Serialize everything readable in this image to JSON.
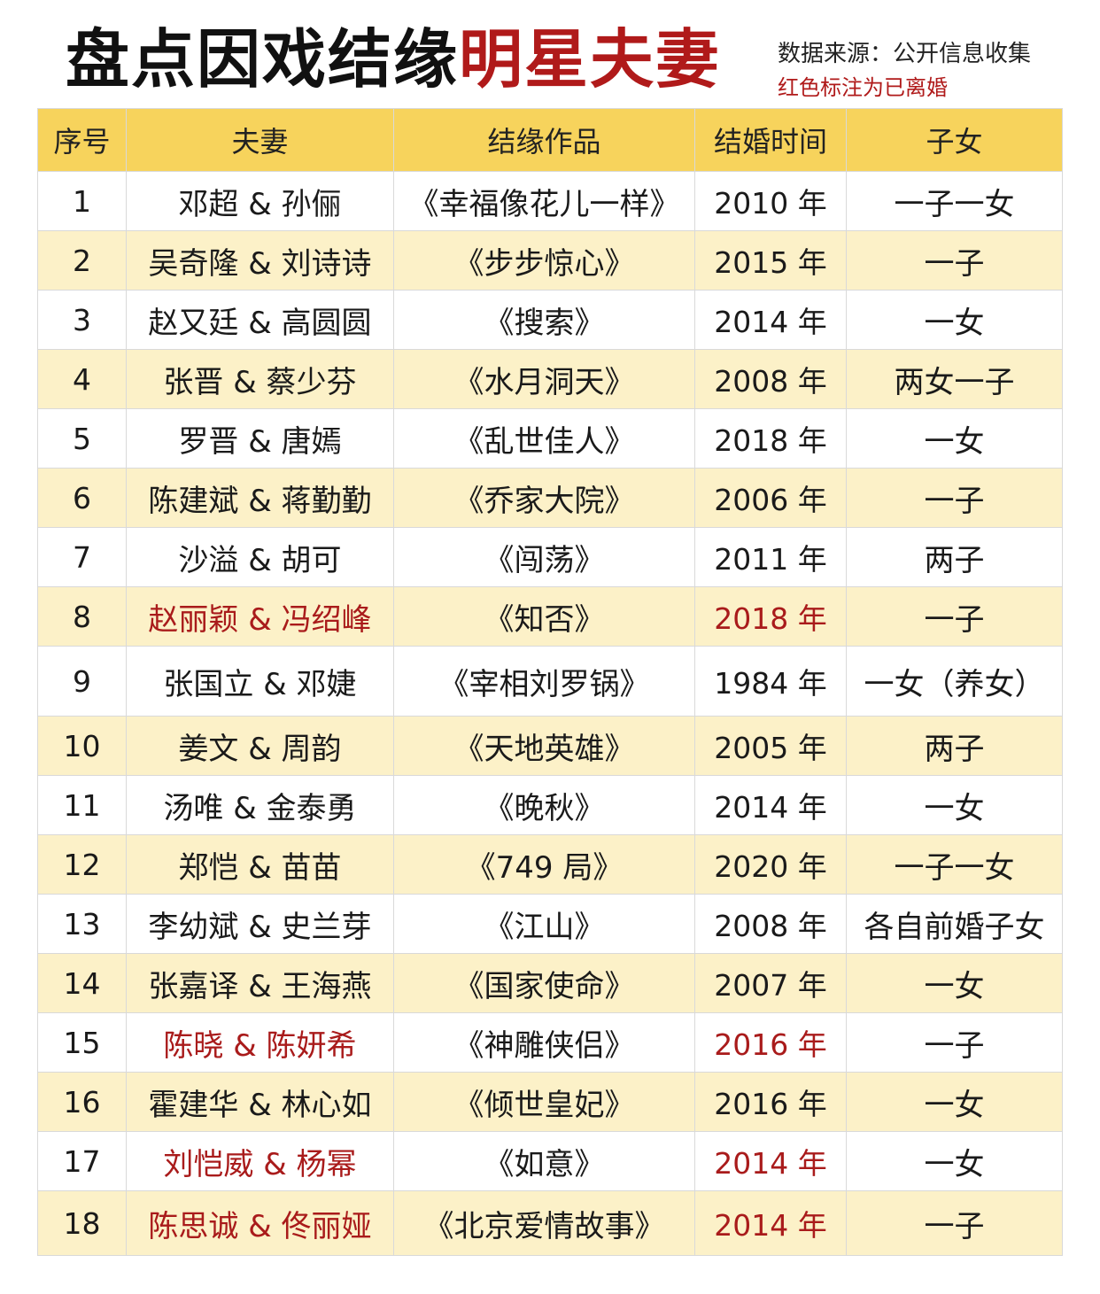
{
  "header": {
    "title_black": "盘点因戏结缘",
    "title_red": "明星夫妻",
    "source": "数据来源：公开信息收集",
    "note": "红色标注为已离婚"
  },
  "colors": {
    "header_row": "#f7d35c",
    "alt_row": "#fcf1c8",
    "divorced_text": "#a91b1b"
  },
  "table": {
    "columns": [
      "序号",
      "夫妻",
      "结缘作品",
      "结婚时间",
      "子女"
    ],
    "rows": [
      {
        "no": "1",
        "couple": "邓超 & 孙俪",
        "work": "《幸福像花儿一样》",
        "year": "2010 年",
        "children": "一子一女",
        "divorced": false
      },
      {
        "no": "2",
        "couple": "吴奇隆 & 刘诗诗",
        "work": "《步步惊心》",
        "year": "2015 年",
        "children": "一子",
        "divorced": false
      },
      {
        "no": "3",
        "couple": "赵又廷 & 高圆圆",
        "work": "《搜索》",
        "year": "2014 年",
        "children": "一女",
        "divorced": false
      },
      {
        "no": "4",
        "couple": "张晋 & 蔡少芬",
        "work": "《水月洞天》",
        "year": "2008 年",
        "children": "两女一子",
        "divorced": false
      },
      {
        "no": "5",
        "couple": "罗晋 & 唐嫣",
        "work": "《乱世佳人》",
        "year": "2018 年",
        "children": "一女",
        "divorced": false
      },
      {
        "no": "6",
        "couple": "陈建斌 & 蒋勤勤",
        "work": "《乔家大院》",
        "year": "2006 年",
        "children": "一子",
        "divorced": false
      },
      {
        "no": "7",
        "couple": "沙溢 & 胡可",
        "work": "《闯荡》",
        "year": "2011 年",
        "children": "两子",
        "divorced": false
      },
      {
        "no": "8",
        "couple": "赵丽颖 & 冯绍峰",
        "work": "《知否》",
        "year": "2018 年",
        "children": "一子",
        "divorced": true
      },
      {
        "no": "9",
        "couple": "张国立 & 邓婕",
        "work": "《宰相刘罗锅》",
        "year": "1984 年",
        "children": "一女（养女）",
        "divorced": false
      },
      {
        "no": "10",
        "couple": "姜文 & 周韵",
        "work": "《天地英雄》",
        "year": "2005 年",
        "children": "两子",
        "divorced": false
      },
      {
        "no": "11",
        "couple": "汤唯 & 金泰勇",
        "work": "《晚秋》",
        "year": "2014 年",
        "children": "一女",
        "divorced": false
      },
      {
        "no": "12",
        "couple": "郑恺 & 苗苗",
        "work": "《749 局》",
        "year": "2020 年",
        "children": "一子一女",
        "divorced": false
      },
      {
        "no": "13",
        "couple": "李幼斌 & 史兰芽",
        "work": "《江山》",
        "year": "2008 年",
        "children": "各自前婚子女",
        "divorced": false
      },
      {
        "no": "14",
        "couple": "张嘉译 & 王海燕",
        "work": "《国家使命》",
        "year": "2007 年",
        "children": "一女",
        "divorced": false
      },
      {
        "no": "15",
        "couple": "陈晓 & 陈妍希",
        "work": "《神雕侠侣》",
        "year": "2016 年",
        "children": "一子",
        "divorced": true
      },
      {
        "no": "16",
        "couple": "霍建华 & 林心如",
        "work": "《倾世皇妃》",
        "year": "2016 年",
        "children": "一女",
        "divorced": false
      },
      {
        "no": "17",
        "couple": "刘恺威 & 杨幂",
        "work": "《如意》",
        "year": "2014 年",
        "children": "一女",
        "divorced": true
      },
      {
        "no": "18",
        "couple": "陈思诚 & 佟丽娅",
        "work": "《北京爱情故事》",
        "year": "2014 年",
        "children": "一子",
        "divorced": true
      }
    ]
  }
}
